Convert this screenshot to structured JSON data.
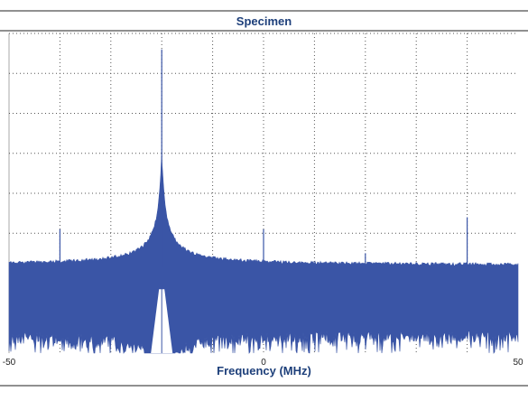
{
  "chart_data": {
    "type": "line",
    "title": "Specimen",
    "xlabel": "Frequency (MHz)",
    "ylabel": "",
    "xlim": [
      -50,
      50
    ],
    "ylim": [
      0,
      8
    ],
    "xticks": [
      -50,
      0,
      50
    ],
    "xtick_labels": [
      "-50",
      "0",
      "50"
    ],
    "grid": true,
    "grid_style": "dotted",
    "series": [
      {
        "color": "#3a55a6",
        "noise_floor_upper": 2.15,
        "noise_floor_lower": 0.6,
        "peaks": [
          {
            "x": -20,
            "y": 7.6
          },
          {
            "x": -40,
            "y": 3.1
          },
          {
            "x": 0,
            "y": 3.1
          },
          {
            "x": 20,
            "y": 2.5
          },
          {
            "x": 40,
            "y": 3.4
          }
        ]
      }
    ]
  }
}
